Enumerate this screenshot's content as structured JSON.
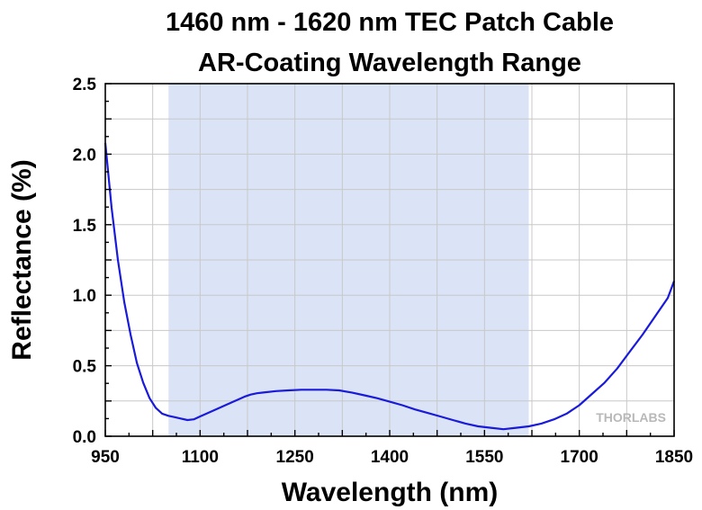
{
  "chart_data": {
    "type": "line",
    "title_line1": "1460 nm - 1620 nm TEC Patch Cable",
    "title_line2": "AR-Coating Wavelength Range",
    "xlabel": "Wavelength (nm)",
    "ylabel": "Reflectance (%)",
    "xlim": [
      950,
      1850
    ],
    "ylim": [
      0,
      2.5
    ],
    "x_ticks": [
      950,
      1100,
      1250,
      1400,
      1550,
      1700,
      1850
    ],
    "y_ticks": [
      "0.0",
      "0.5",
      "1.0",
      "1.5",
      "2.0",
      "2.5"
    ],
    "grid": true,
    "shaded_range": [
      1050,
      1620
    ],
    "line_color": "#1a1adb",
    "shade_color": "#dbe4f6",
    "logo": "THORLABS",
    "series": [
      {
        "x": [
          950,
          960,
          970,
          980,
          990,
          1000,
          1010,
          1020,
          1030,
          1040,
          1050,
          1060,
          1070,
          1080,
          1090,
          1100,
          1110,
          1120,
          1130,
          1140,
          1150,
          1160,
          1170,
          1180,
          1190,
          1200,
          1220,
          1240,
          1260,
          1280,
          1300,
          1320,
          1340,
          1360,
          1380,
          1400,
          1420,
          1440,
          1460,
          1480,
          1500,
          1520,
          1540,
          1560,
          1580,
          1600,
          1620,
          1640,
          1660,
          1680,
          1700,
          1720,
          1740,
          1760,
          1780,
          1800,
          1820,
          1840,
          1850
        ],
        "y": [
          2.08,
          1.62,
          1.25,
          0.95,
          0.72,
          0.52,
          0.38,
          0.27,
          0.2,
          0.16,
          0.145,
          0.135,
          0.125,
          0.115,
          0.12,
          0.14,
          0.16,
          0.18,
          0.2,
          0.22,
          0.24,
          0.26,
          0.28,
          0.295,
          0.305,
          0.31,
          0.32,
          0.325,
          0.33,
          0.33,
          0.33,
          0.325,
          0.31,
          0.29,
          0.27,
          0.245,
          0.22,
          0.19,
          0.165,
          0.14,
          0.115,
          0.09,
          0.07,
          0.06,
          0.05,
          0.06,
          0.07,
          0.09,
          0.12,
          0.16,
          0.22,
          0.3,
          0.38,
          0.48,
          0.6,
          0.72,
          0.85,
          0.98,
          1.1
        ]
      }
    ]
  }
}
